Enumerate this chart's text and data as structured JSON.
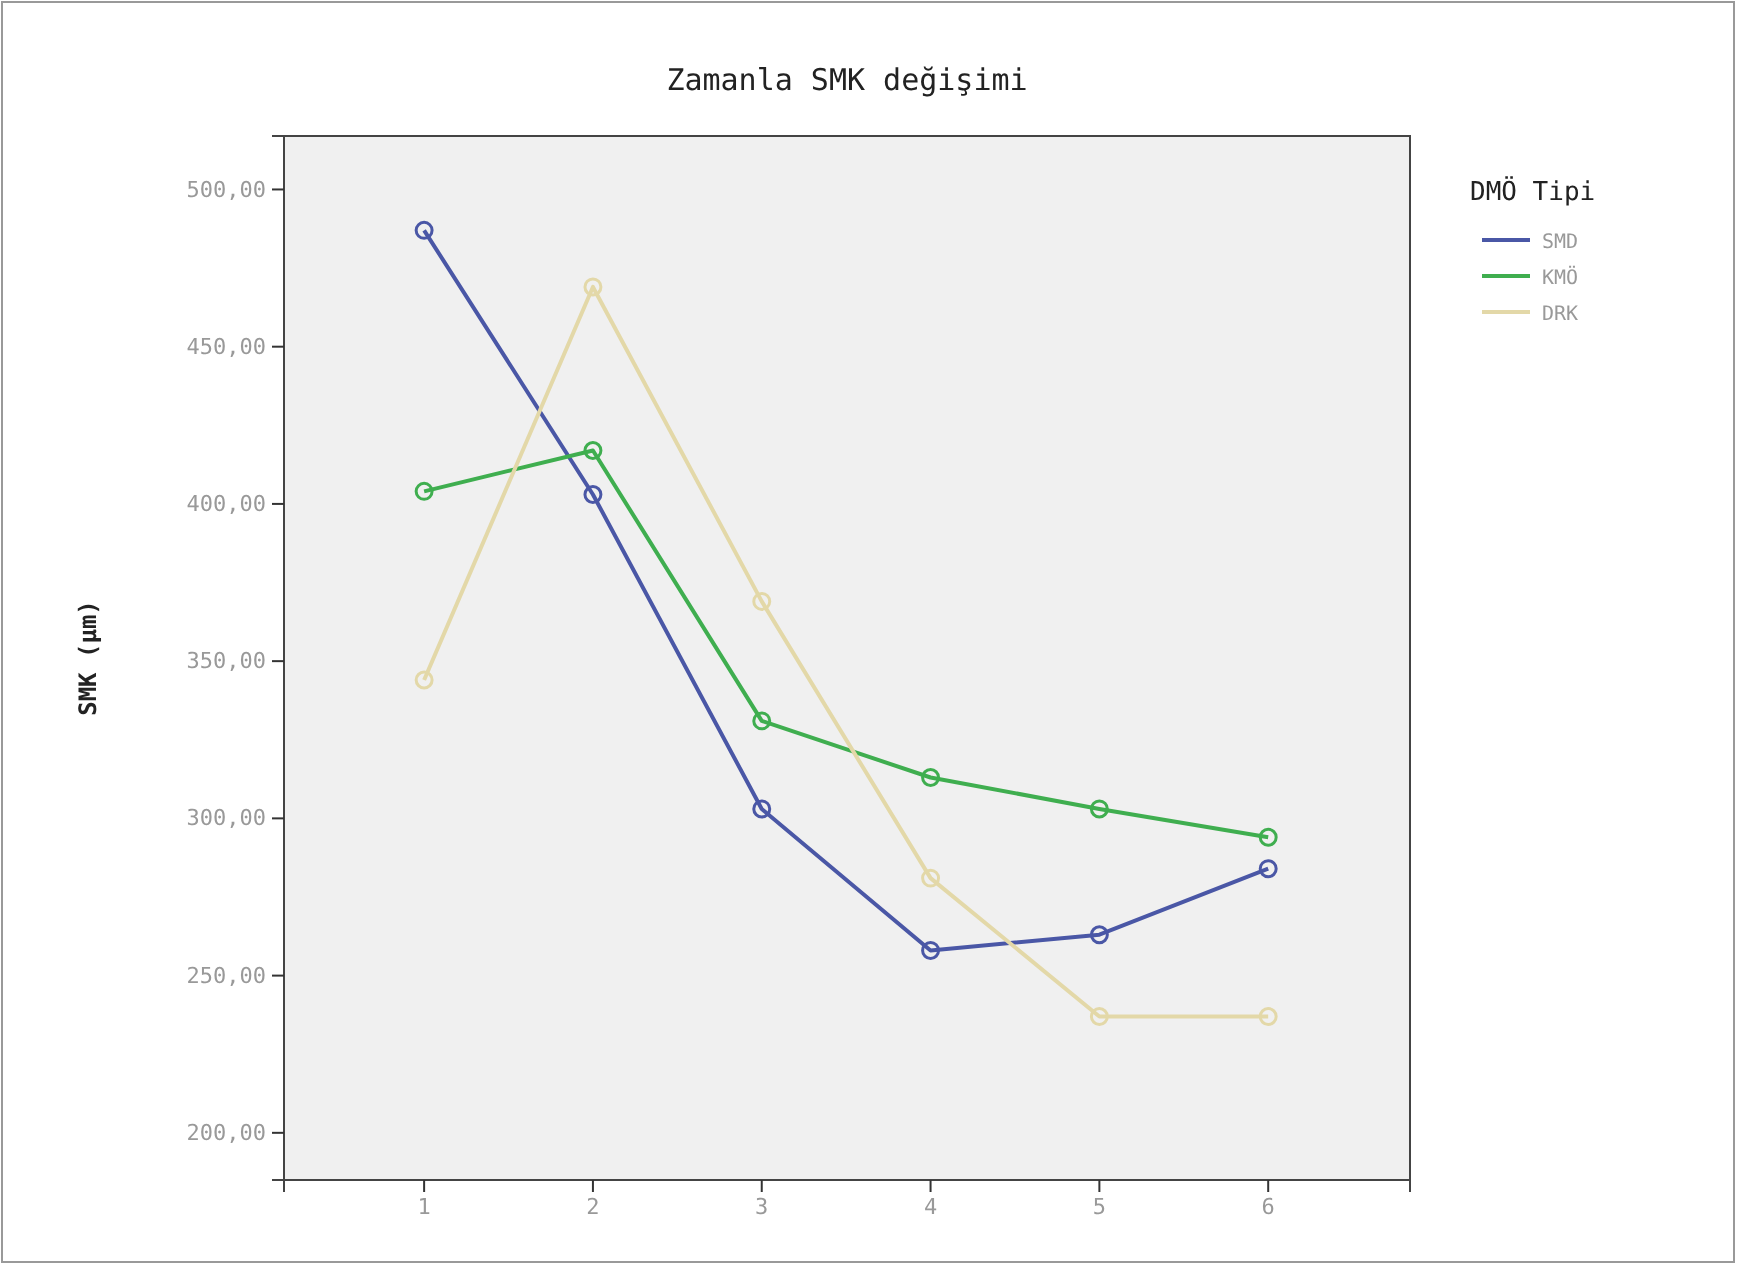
{
  "chart_data": {
    "type": "line",
    "title": "Zamanla SMK değişimi",
    "ylabel": "SMK (µm)",
    "legend_title": "DMÖ Tipi",
    "x": [
      1,
      2,
      3,
      4,
      5,
      6
    ],
    "xlim": [
      0.17,
      6.84
    ],
    "xticks": [
      1,
      2,
      3,
      4,
      5,
      6
    ],
    "ylim": [
      185,
      517
    ],
    "yticks": [
      {
        "value": 200,
        "label": "200,00"
      },
      {
        "value": 250,
        "label": "250,00"
      },
      {
        "value": 300,
        "label": "300,00"
      },
      {
        "value": 350,
        "label": "350,00"
      },
      {
        "value": 400,
        "label": "400,00"
      },
      {
        "value": 450,
        "label": "450,00"
      },
      {
        "value": 500,
        "label": "500,00"
      }
    ],
    "series": [
      {
        "name": "SMD",
        "color": "#4a57a6",
        "values": [
          487,
          403,
          303,
          258,
          263,
          284
        ]
      },
      {
        "name": "KMÖ",
        "color": "#3fae4f",
        "values": [
          404,
          417,
          331,
          313,
          303,
          294
        ]
      },
      {
        "name": "DRK",
        "color": "#e3d8a8",
        "values": [
          344,
          469,
          369,
          281,
          237,
          237
        ]
      }
    ],
    "marker": "circle",
    "legend": "top right",
    "grid": false
  }
}
